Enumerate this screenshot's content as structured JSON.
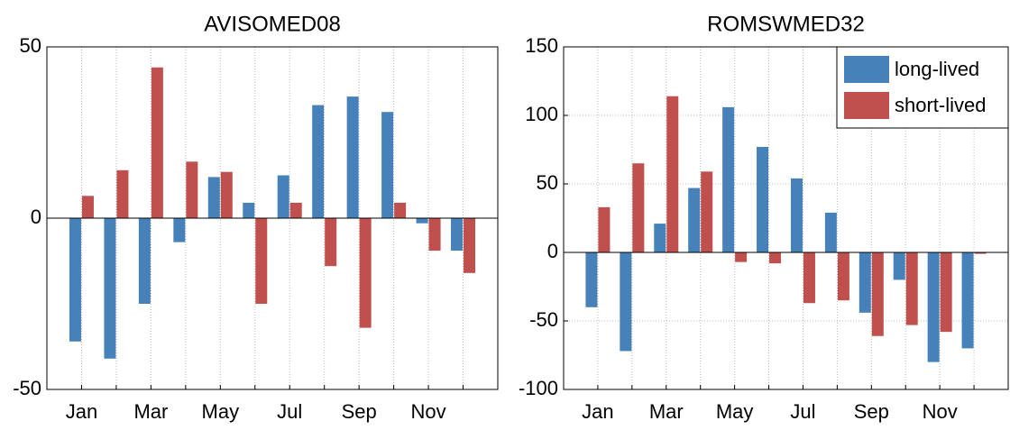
{
  "chart_data": [
    {
      "type": "bar",
      "title": "AVISOMED08",
      "categories": [
        "Jan",
        null,
        "Mar",
        null,
        "May",
        null,
        "Jul",
        null,
        "Sep",
        null,
        "Nov",
        null
      ],
      "series": [
        {
          "name": "long-lived",
          "color": "#4682b9",
          "values": [
            -36,
            -41,
            -25,
            -7,
            12,
            4.5,
            12.5,
            33,
            35.5,
            31,
            -1.5,
            -9.5
          ]
        },
        {
          "name": "short-lived",
          "color": "#c0504d",
          "values": [
            6.5,
            14,
            44,
            16.5,
            13.5,
            -25,
            4.5,
            -14,
            -32,
            4.5,
            -9.5,
            -16
          ]
        }
      ],
      "ylim": [
        -50,
        50
      ],
      "yticks": [
        -50,
        0,
        50
      ],
      "grid": true
    },
    {
      "type": "bar",
      "title": "ROMSWMED32",
      "categories": [
        "Jan",
        null,
        "Mar",
        null,
        "May",
        null,
        "Jul",
        null,
        "Sep",
        null,
        "Nov",
        null
      ],
      "series": [
        {
          "name": "long-lived",
          "color": "#4682b9",
          "values": [
            -40,
            -72,
            21,
            47,
            106,
            77,
            54,
            29,
            -44,
            -20,
            -80,
            -70
          ]
        },
        {
          "name": "short-lived",
          "color": "#c0504d",
          "values": [
            33,
            65,
            114,
            59,
            -7,
            -8,
            -37,
            -35,
            -61,
            -53,
            -58,
            -1
          ]
        }
      ],
      "ylim": [
        -100,
        150
      ],
      "yticks": [
        -100,
        -50,
        0,
        50,
        100,
        150
      ],
      "grid": true,
      "legend": "northeast"
    }
  ]
}
